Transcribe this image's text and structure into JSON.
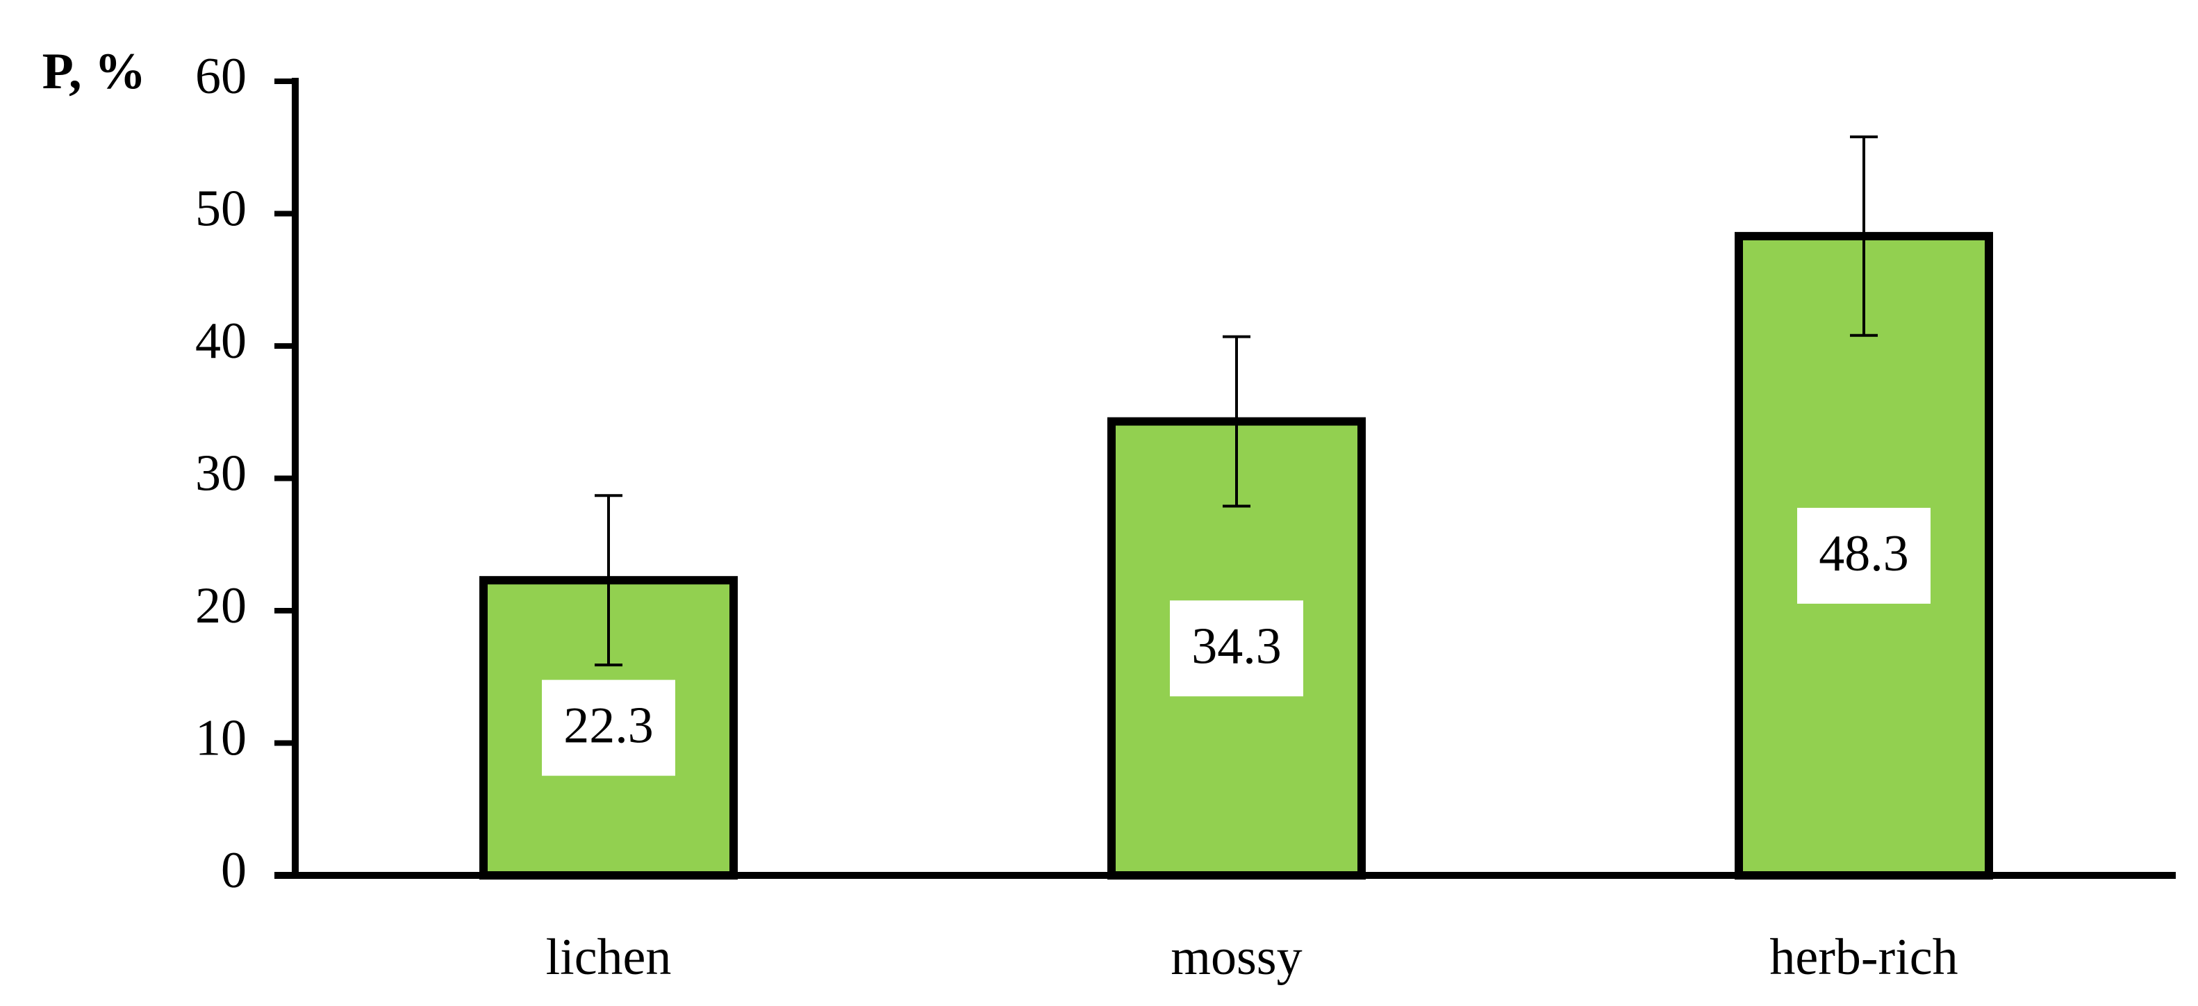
{
  "chart_data": {
    "type": "bar",
    "y_label": "P, %",
    "categories": [
      "lichen",
      "mossy",
      "herb-rich"
    ],
    "values": [
      22.3,
      34.3,
      48.3
    ],
    "errors": [
      6.4,
      6.4,
      7.5
    ],
    "color": "#92d050",
    "ylim": [
      0,
      60
    ],
    "yticks": [
      0,
      10,
      20,
      30,
      40,
      50,
      60
    ],
    "grid": false
  }
}
